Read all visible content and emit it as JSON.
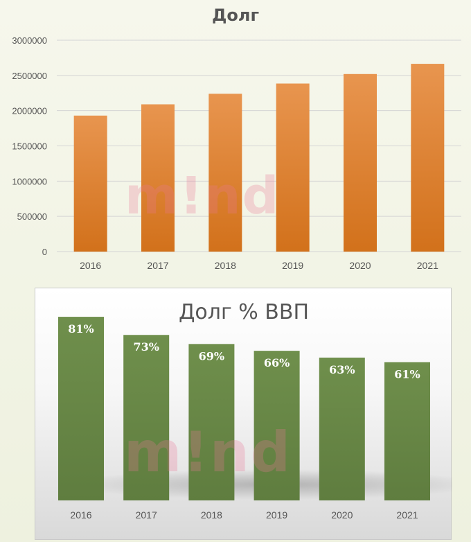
{
  "chart_data": [
    {
      "type": "bar",
      "title": "Долг",
      "categories": [
        "2016",
        "2017",
        "2018",
        "2019",
        "2020",
        "2021"
      ],
      "values": [
        1930000,
        2090000,
        2240000,
        2385000,
        2520000,
        2665000
      ],
      "yticks": [
        "0",
        "500000",
        "1000000",
        "1500000",
        "2000000",
        "2500000",
        "3000000"
      ],
      "ylim": [
        0,
        3000000
      ],
      "grid": true,
      "bar_color": "#e07b2c"
    },
    {
      "type": "bar",
      "title": "Долг % ВВП",
      "categories": [
        "2016",
        "2017",
        "2018",
        "2019",
        "2020",
        "2021"
      ],
      "values": [
        81,
        73,
        69,
        66,
        63,
        61
      ],
      "data_labels": [
        "81%",
        "73%",
        "69%",
        "66%",
        "63%",
        "61%"
      ],
      "ylim": [
        0,
        85
      ],
      "grid": false,
      "bar_color": "#6b8a4a"
    }
  ],
  "watermark": "m!nd"
}
